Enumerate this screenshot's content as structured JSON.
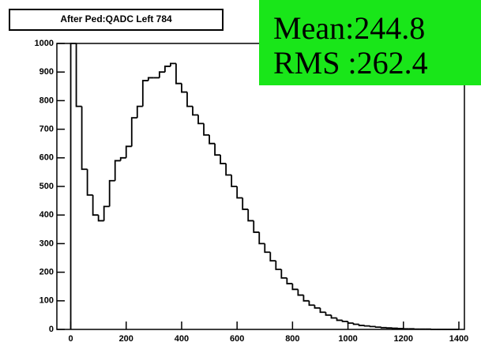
{
  "chart_data": {
    "type": "histogram",
    "title": "After Ped:QADC Left 784",
    "stats": [
      "Mean:244.8",
      "RMS :262.4"
    ],
    "bins": [
      0,
      20,
      40,
      60,
      80,
      100,
      120,
      140,
      160,
      180,
      200,
      220,
      240,
      260,
      280,
      300,
      320,
      340,
      360,
      380,
      400,
      420,
      440,
      460,
      480,
      500,
      520,
      540,
      560,
      580,
      600,
      620,
      640,
      660,
      680,
      700,
      720,
      740,
      760,
      780,
      800,
      820,
      840,
      860,
      880,
      900,
      920,
      940,
      960,
      980,
      1000,
      1020,
      1040,
      1060,
      1080,
      1100,
      1120,
      1140,
      1160,
      1180,
      1200,
      1220,
      1240,
      1260,
      1280,
      1300,
      1320,
      1340,
      1360,
      1380,
      1400
    ],
    "counts": [
      1000,
      780,
      560,
      470,
      400,
      380,
      430,
      520,
      590,
      600,
      640,
      740,
      780,
      870,
      880,
      880,
      900,
      920,
      930,
      860,
      830,
      780,
      750,
      720,
      680,
      650,
      610,
      580,
      540,
      500,
      460,
      420,
      380,
      340,
      300,
      270,
      240,
      210,
      180,
      160,
      140,
      120,
      100,
      85,
      75,
      60,
      50,
      40,
      32,
      28,
      22,
      18,
      14,
      12,
      10,
      8,
      6,
      5,
      4,
      3,
      2,
      2,
      1,
      1,
      1,
      0,
      0,
      0,
      0,
      0
    ],
    "color": "#000000",
    "xlim": [
      -50,
      1420
    ],
    "ylim": [
      0,
      1000
    ],
    "xticks": [
      0,
      200,
      400,
      600,
      800,
      1000,
      1200,
      1400
    ],
    "yticks": [
      0,
      100,
      200,
      300,
      400,
      500,
      600,
      700,
      800,
      900,
      1000
    ]
  }
}
